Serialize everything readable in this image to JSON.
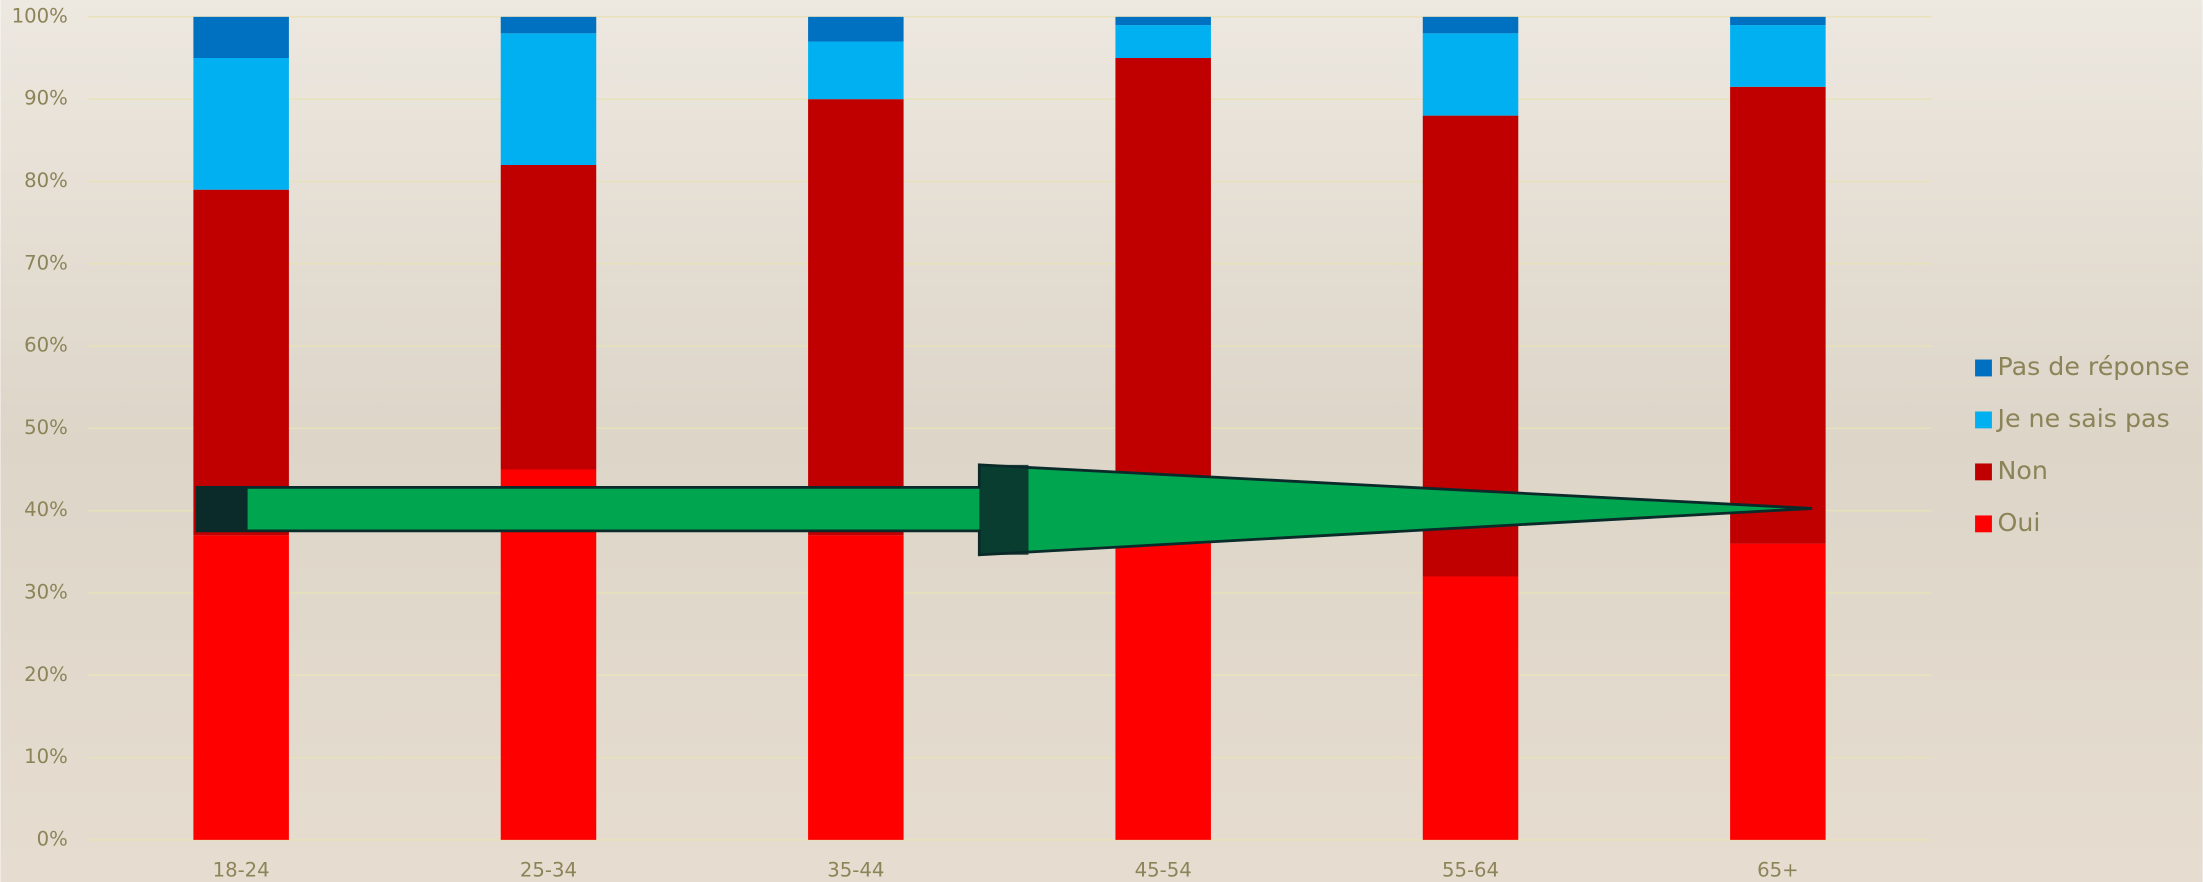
{
  "chart_data": {
    "type": "stacked-bar",
    "categories": [
      "18-24",
      "25-34",
      "35-44",
      "45-54",
      "55-64",
      "65+"
    ],
    "series": [
      {
        "name": "Oui",
        "color": "#ff0000",
        "values": [
          37,
          45,
          37,
          36,
          32,
          36
        ]
      },
      {
        "name": "Non",
        "color": "#c00000",
        "values": [
          42,
          37,
          53,
          59,
          56,
          55.5
        ]
      },
      {
        "name": "Je ne sais pas",
        "color": "#00b0f0",
        "values": [
          16,
          16,
          7,
          4,
          10,
          7.5
        ]
      },
      {
        "name": "Pas de réponse",
        "color": "#0070c0",
        "values": [
          5,
          2,
          3,
          1,
          2,
          1
        ]
      }
    ],
    "ylim": [
      0,
      100
    ],
    "yticks": [
      {
        "value": 0,
        "label": "0%"
      },
      {
        "value": 10,
        "label": "10%"
      },
      {
        "value": 20,
        "label": "20%"
      },
      {
        "value": 30,
        "label": "30%"
      },
      {
        "value": 40,
        "label": "40%"
      },
      {
        "value": 50,
        "label": "50%"
      },
      {
        "value": 60,
        "label": "60%"
      },
      {
        "value": 70,
        "label": "70%"
      },
      {
        "value": 80,
        "label": "80%"
      },
      {
        "value": 90,
        "label": "90%"
      },
      {
        "value": 100,
        "label": "100%"
      }
    ],
    "grid": true,
    "legend": "right"
  }
}
